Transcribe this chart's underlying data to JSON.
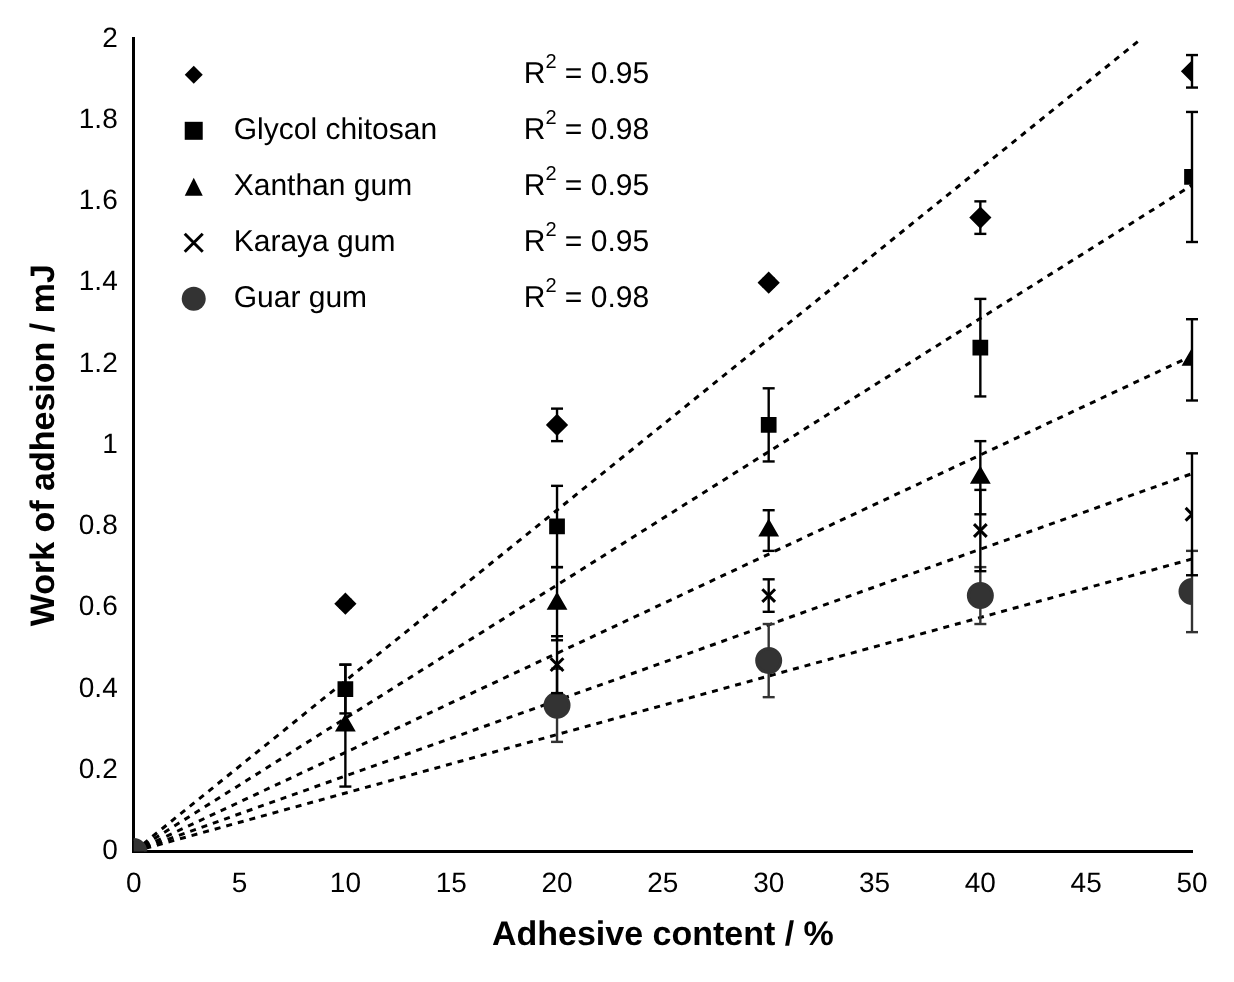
{
  "chart_data": {
    "type": "scatter",
    "xlabel": "Adhesive content / %",
    "ylabel": "Work of adhesion / mJ",
    "x": [
      0,
      10,
      20,
      30,
      40,
      50
    ],
    "xlim": [
      0,
      50
    ],
    "xticks": [
      0,
      5,
      10,
      15,
      20,
      25,
      30,
      35,
      40,
      45,
      50
    ],
    "ylim": [
      0,
      2
    ],
    "yticks": [
      0,
      0.2,
      0.4,
      0.6,
      0.8,
      1,
      1.2,
      1.4,
      1.6,
      1.8,
      2
    ],
    "grid": false,
    "legend": "top left",
    "annotations": [
      "R$^{2}$ = 0.95",
      "R$^{2}$ = 0.98",
      "R$^{2}$ = 0.95",
      "R$^{2}$ = 0.95",
      "R$^{2}$ = 0.98"
    ],
    "series": [
      {
        "color": "#000000",
        "marker": "diamond",
        "values": [
          null,
          0.61,
          1.05,
          1.4,
          1.56,
          1.92
        ],
        "errors": [
          null,
          0.01,
          0.04,
          0.01,
          0.04,
          0.04
        ]
      },
      {
        "name": "Glycol chitosan",
        "color": "#000000",
        "marker": "square",
        "values": [
          null,
          0.4,
          0.8,
          1.05,
          1.24,
          1.66
        ],
        "errors": [
          null,
          0.06,
          0.1,
          0.09,
          0.12,
          0.16
        ]
      },
      {
        "name": "Xanthan gum",
        "color": "#000000",
        "marker": "triangle",
        "values": [
          null,
          0.31,
          0.61,
          0.79,
          0.92,
          1.21
        ],
        "errors": [
          null,
          0.15,
          0.09,
          0.05,
          0.09,
          0.1
        ]
      },
      {
        "name": "Karaya gum",
        "color": "#000000",
        "marker": "cross",
        "values": [
          null,
          null,
          0.46,
          0.63,
          0.79,
          0.83
        ],
        "errors": [
          null,
          null,
          0.07,
          0.04,
          0.1,
          0.15
        ]
      },
      {
        "name": "Guar gum",
        "color": "#333333",
        "marker": "circle",
        "values": [
          0,
          null,
          0.36,
          0.47,
          0.63,
          0.64
        ],
        "errors": [
          null,
          null,
          0.09,
          0.09,
          0.07,
          0.1
        ]
      },
      {
        "type": "line",
        "x": [
          0,
          47.6
        ],
        "values": [
          0,
          2
        ],
        "color": "#000000",
        "line_style": "dashed",
        "marker": "none"
      },
      {
        "type": "line",
        "x": [
          0,
          50
        ],
        "values": [
          0,
          1.64
        ],
        "color": "#000000",
        "line_style": "dashed",
        "marker": "none"
      },
      {
        "type": "line",
        "x": [
          0,
          50
        ],
        "values": [
          0,
          1.22
        ],
        "color": "#000000",
        "line_style": "dashed",
        "marker": "none"
      },
      {
        "type": "line",
        "x": [
          0,
          50
        ],
        "values": [
          0,
          0.93
        ],
        "color": "#000000",
        "line_style": "dashed",
        "marker": "none"
      },
      {
        "type": "line",
        "x": [
          0,
          50
        ],
        "values": [
          0,
          0.72
        ],
        "color": "#000000",
        "line_style": "dashed",
        "marker": "none"
      }
    ]
  }
}
